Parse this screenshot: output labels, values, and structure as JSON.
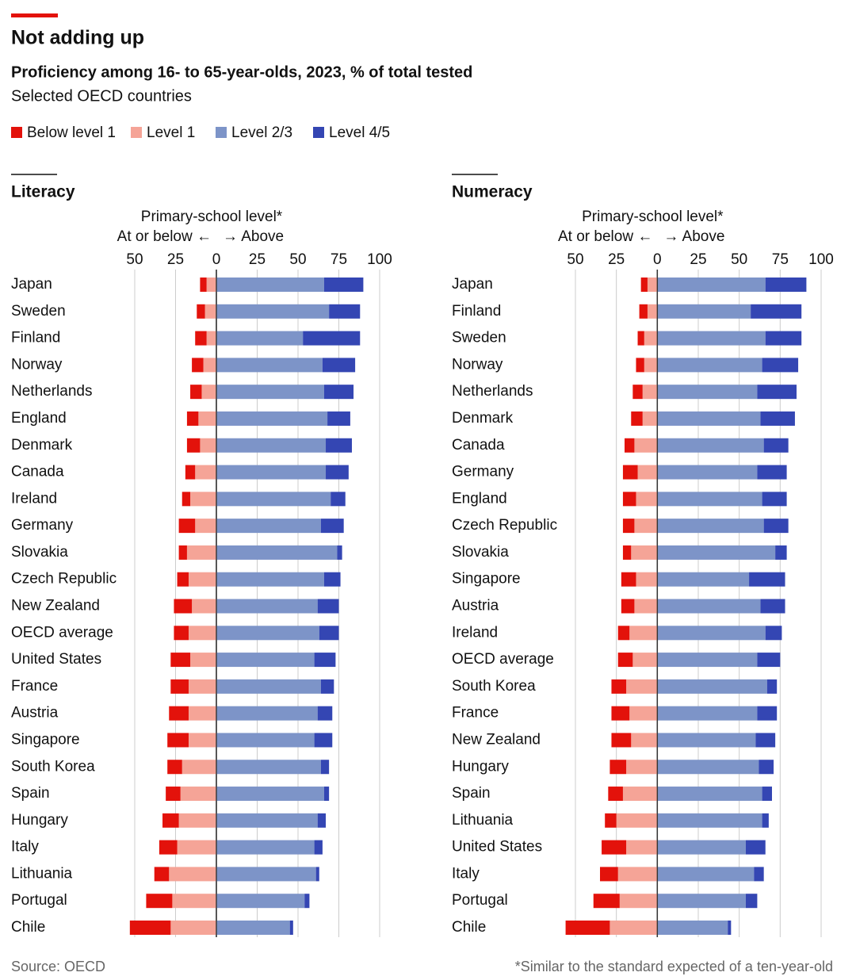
{
  "title": "Not adding up",
  "subtitle": "Proficiency among 16- to 65-year-olds, 2023, % of total tested",
  "subsubtitle": "Selected OECD countries",
  "source": "Source: OECD",
  "footnote": "*Similar to the standard expected of a ten-year-old",
  "chart_data": [
    {
      "type": "bar",
      "orientation": "horizontal",
      "stacked": true,
      "title": "Literacy",
      "annotation": "Primary-school level*",
      "left_label": "At or below ←",
      "right_label": "→ Above",
      "categories": [
        "Japan",
        "Sweden",
        "Finland",
        "Norway",
        "Netherlands",
        "England",
        "Denmark",
        "Canada",
        "Ireland",
        "Germany",
        "Slovakia",
        "Czech Republic",
        "New Zealand",
        "OECD average",
        "United States",
        "France",
        "Austria",
        "Singapore",
        "South Korea",
        "Spain",
        "Hungary",
        "Italy",
        "Lithuania",
        "Portugal",
        "Chile"
      ],
      "series": [
        {
          "name": "Below level 1",
          "color": "#e3120b",
          "values": [
            -4,
            -5,
            -7,
            -7,
            -7,
            -7,
            -8,
            -6,
            -5,
            -10,
            -5,
            -7,
            -11,
            -9,
            -12,
            -11,
            -12,
            -13,
            -9,
            -9,
            -10,
            -11,
            -9,
            -16,
            -25
          ]
        },
        {
          "name": "Level 1",
          "color": "#f5a497",
          "values": [
            -6,
            -7,
            -6,
            -8,
            -9,
            -11,
            -10,
            -13,
            -16,
            -13,
            -18,
            -17,
            -15,
            -17,
            -16,
            -17,
            -17,
            -17,
            -21,
            -22,
            -23,
            -24,
            -29,
            -27,
            -28
          ]
        },
        {
          "name": "Level 2/3",
          "color": "#7d94c8",
          "values": [
            66,
            69,
            53,
            65,
            66,
            68,
            67,
            67,
            70,
            64,
            74,
            66,
            62,
            63,
            60,
            64,
            62,
            60,
            64,
            66,
            62,
            60,
            61,
            54,
            45
          ]
        },
        {
          "name": "Level 4/5",
          "color": "#3446b3",
          "values": [
            24,
            19,
            35,
            20,
            18,
            14,
            16,
            14,
            9,
            14,
            3,
            10,
            13,
            12,
            13,
            8,
            9,
            11,
            5,
            3,
            5,
            5,
            2,
            3,
            2
          ]
        }
      ],
      "xlim": [
        -50,
        100
      ],
      "xticks": [
        {
          "value": -50,
          "label": "50"
        },
        {
          "value": -25,
          "label": "25"
        },
        0,
        25,
        50,
        75,
        100
      ],
      "grid": true
    },
    {
      "type": "bar",
      "orientation": "horizontal",
      "stacked": true,
      "title": "Numeracy",
      "annotation": "Primary-school level*",
      "left_label": "At or below ←",
      "right_label": "→ Above",
      "categories": [
        "Japan",
        "Finland",
        "Sweden",
        "Norway",
        "Netherlands",
        "Denmark",
        "Canada",
        "Germany",
        "England",
        "Czech Republic",
        "Slovakia",
        "Singapore",
        "Austria",
        "Ireland",
        "OECD average",
        "South Korea",
        "France",
        "New Zealand",
        "Hungary",
        "Spain",
        "Lithuania",
        "United States",
        "Italy",
        "Portugal",
        "Chile"
      ],
      "series": [
        {
          "color": "#e3120b",
          "values": [
            -4,
            -5,
            -4,
            -5,
            -6,
            -7,
            -6,
            -9,
            -8,
            -7,
            -5,
            -9,
            -8,
            -7,
            -9,
            -9,
            -11,
            -12,
            -10,
            -9,
            -7,
            -15,
            -11,
            -16,
            -27
          ]
        },
        {
          "color": "#f5a497",
          "values": [
            -6,
            -6,
            -8,
            -8,
            -9,
            -9,
            -14,
            -12,
            -13,
            -14,
            -16,
            -13,
            -14,
            -17,
            -15,
            -19,
            -17,
            -16,
            -19,
            -21,
            -25,
            -19,
            -24,
            -23,
            -29
          ]
        },
        {
          "color": "#7d94c8",
          "values": [
            66,
            57,
            66,
            64,
            61,
            63,
            65,
            61,
            64,
            65,
            72,
            56,
            63,
            66,
            61,
            67,
            61,
            60,
            62,
            64,
            64,
            54,
            59,
            54,
            43
          ]
        },
        {
          "color": "#3446b3",
          "values": [
            25,
            31,
            22,
            22,
            24,
            21,
            15,
            18,
            15,
            15,
            7,
            22,
            15,
            10,
            14,
            6,
            12,
            12,
            9,
            6,
            4,
            12,
            6,
            7,
            2
          ]
        }
      ],
      "xlim": [
        -50,
        100
      ],
      "xticks": [
        {
          "value": -50,
          "label": "50"
        },
        {
          "value": -25,
          "label": "25"
        },
        0,
        25,
        50,
        75,
        100
      ],
      "grid": true
    }
  ]
}
